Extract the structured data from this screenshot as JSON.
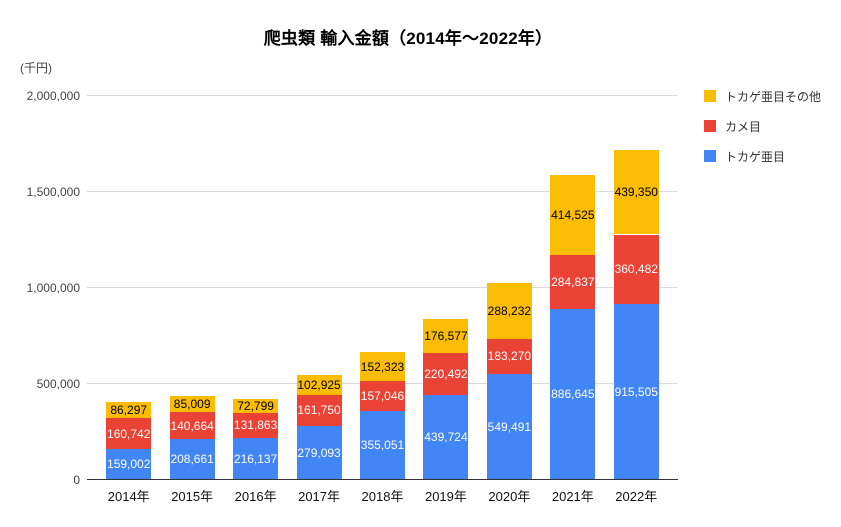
{
  "chart_data": {
    "type": "bar",
    "stacked": true,
    "title": "爬虫類 輸入金額（2014年～2022年）",
    "unit": "(千円)",
    "categories": [
      "2014年",
      "2015年",
      "2016年",
      "2017年",
      "2018年",
      "2019年",
      "2020年",
      "2021年",
      "2022年"
    ],
    "series": [
      {
        "name": "トカゲ亜目",
        "color": "#4285F4",
        "label_color": "#ffffff",
        "values": [
          159002,
          208661,
          216137,
          279093,
          355051,
          439724,
          549491,
          886645,
          915505
        ]
      },
      {
        "name": "カメ目",
        "color": "#EA4335",
        "label_color": "#ffffff",
        "values": [
          160742,
          140664,
          131863,
          161750,
          157046,
          220492,
          183270,
          284837,
          360482
        ]
      },
      {
        "name": "トカゲ亜目その他",
        "color": "#FBBC04",
        "label_color": "#000000",
        "values": [
          86297,
          85009,
          72799,
          102925,
          152323,
          176577,
          288232,
          414525,
          439350
        ]
      }
    ],
    "y_axis": {
      "ticks": [
        0,
        500000,
        1000000,
        1500000,
        2000000
      ],
      "max": 2000000,
      "grid": true
    },
    "legend": {
      "position": "right",
      "order_top_to_bottom": [
        "トカゲ亜目その他",
        "カメ目",
        "トカゲ亜目"
      ]
    },
    "colors": {
      "gridline": "#d9d9d9",
      "axis_line": "#333333",
      "background": "#ffffff"
    }
  }
}
